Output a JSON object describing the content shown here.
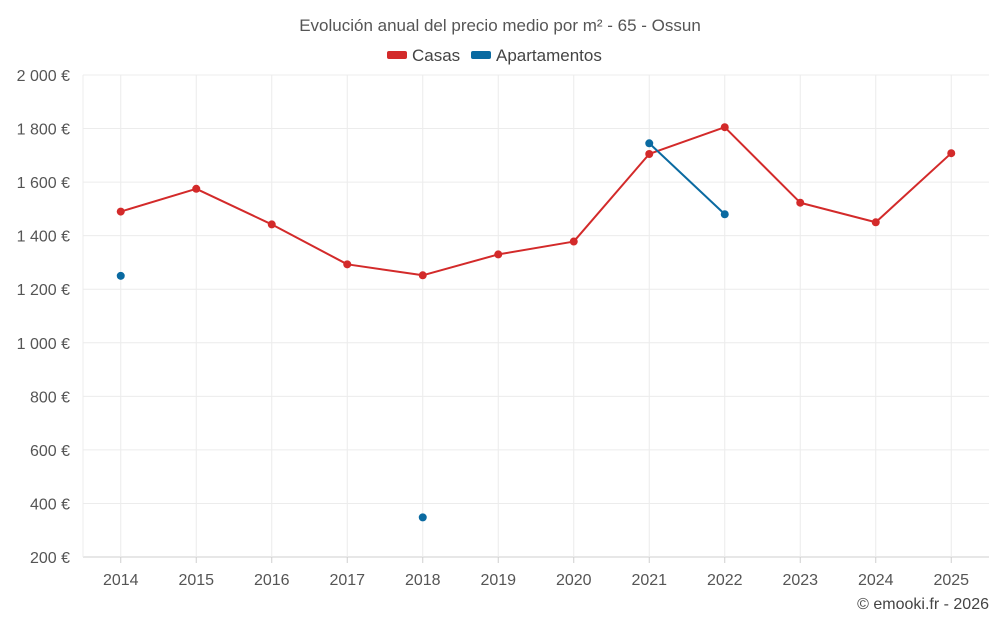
{
  "chart_data": {
    "type": "line",
    "title": "Evolución anual del precio medio por m² - 65 - Ossun",
    "categories": [
      "2014",
      "2015",
      "2016",
      "2017",
      "2018",
      "2019",
      "2020",
      "2021",
      "2022",
      "2023",
      "2024",
      "2025"
    ],
    "ylim": [
      200,
      2000
    ],
    "yticks": [
      200,
      400,
      600,
      800,
      1000,
      1200,
      1400,
      1600,
      1800,
      2000
    ],
    "ytick_labels": [
      "200 €",
      "400 €",
      "600 €",
      "800 €",
      "1 000 €",
      "1 200 €",
      "1 400 €",
      "1 600 €",
      "1 800 €",
      "2 000 €"
    ],
    "grid": true,
    "legend_position": "top-center",
    "series": [
      {
        "name": "Casas",
        "color": "#d32a2a",
        "values": [
          1490,
          1575,
          1442,
          1293,
          1252,
          1330,
          1378,
          1705,
          1805,
          1523,
          1450,
          1708
        ]
      },
      {
        "name": "Apartamentos",
        "color": "#0a6aa1",
        "values": [
          1250,
          null,
          null,
          null,
          348,
          null,
          null,
          1745,
          1480,
          null,
          null,
          null
        ]
      }
    ]
  },
  "credit": "© emooki.fr - 2026"
}
